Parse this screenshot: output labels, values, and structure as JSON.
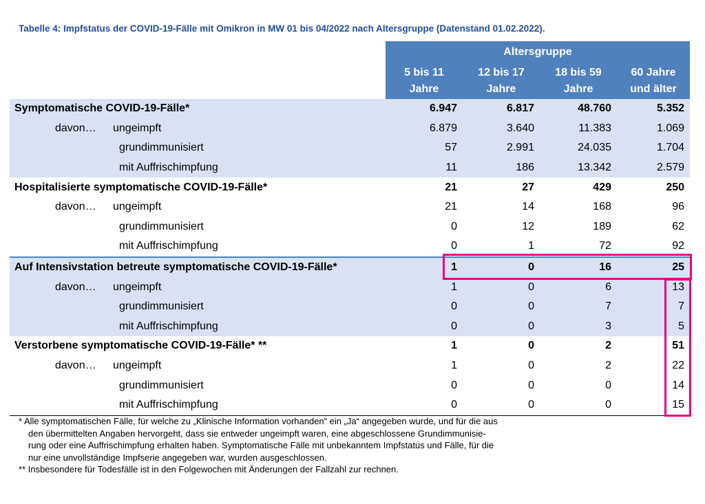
{
  "title": "Tabelle 4: Impfstatus der COVID-19-Fälle mit Omikron in MW 01 bis 04/2022 nach Altersgruppe (Datenstand 01.02.2022).",
  "group_header": "Altersgruppe",
  "columns": [
    {
      "line1": "5 bis 11",
      "line2": "Jahre"
    },
    {
      "line1": "12 bis 17",
      "line2": "Jahre"
    },
    {
      "line1": "18 bis 59",
      "line2": "Jahre"
    },
    {
      "line1": "60 Jahre",
      "line2": "und älter"
    }
  ],
  "davon_label": "davon…",
  "sections": [
    {
      "label": "Symptomatische COVID-19-Fälle*",
      "totals": [
        "6.947",
        "6.817",
        "48.760",
        "5.352"
      ],
      "rows": [
        {
          "label": "ungeimpft",
          "values": [
            "6.879",
            "3.640",
            "11.383",
            "1.069"
          ]
        },
        {
          "label": "grundimmunisiert",
          "values": [
            "57",
            "2.991",
            "24.035",
            "1.704"
          ]
        },
        {
          "label": "mit Auffrischimpfung",
          "values": [
            "11",
            "186",
            "13.342",
            "2.579"
          ]
        }
      ]
    },
    {
      "label": "Hospitalisierte symptomatische COVID-19-Fälle*",
      "totals": [
        "21",
        "27",
        "429",
        "250"
      ],
      "rows": [
        {
          "label": "ungeimpft",
          "values": [
            "21",
            "14",
            "168",
            "96"
          ]
        },
        {
          "label": "grundimmunisiert",
          "values": [
            "0",
            "12",
            "189",
            "62"
          ]
        },
        {
          "label": "mit Auffrischimpfung",
          "values": [
            "0",
            "1",
            "72",
            "92"
          ]
        }
      ]
    },
    {
      "label": "Auf Intensivstation betreute symptomatische COVID-19-Fälle*",
      "totals": [
        "1",
        "0",
        "16",
        "25"
      ],
      "rows": [
        {
          "label": "ungeimpft",
          "values": [
            "1",
            "0",
            "6",
            "13"
          ]
        },
        {
          "label": "grundimmunisiert",
          "values": [
            "0",
            "0",
            "7",
            "7"
          ]
        },
        {
          "label": "mit Auffrischimpfung",
          "values": [
            "0",
            "0",
            "3",
            "5"
          ]
        }
      ]
    },
    {
      "label": "Verstorbene symptomatische COVID-19-Fälle* **",
      "totals": [
        "1",
        "0",
        "2",
        "51"
      ],
      "rows": [
        {
          "label": "ungeimpft",
          "values": [
            "1",
            "0",
            "2",
            "22"
          ]
        },
        {
          "label": "grundimmunisiert",
          "values": [
            "0",
            "0",
            "0",
            "14"
          ]
        },
        {
          "label": "mit Auffrischimpfung",
          "values": [
            "0",
            "0",
            "0",
            "15"
          ]
        }
      ]
    }
  ],
  "footnotes": {
    "note1_lines": [
      "* Alle symptomatischen Fälle, für welche zu „Klinische Information vorhanden“ ein „Ja“ angegeben wurde, und für die aus",
      "den übermittelten Angaben hervorgeht, dass sie entweder ungeimpft waren, eine abgeschlossene Grundimmunisie-",
      "rung oder eine Auffrischimpfung erhalten haben. Symptomatische Fälle mit unbekanntem Impfstatus und Fälle, für die",
      "nur eine unvollständige Impfserie angegeben war, wurden ausgeschlossen."
    ],
    "note2": "** Insbesondere für Todesfälle ist in den Folgewochen mit Änderungen der Fallzahl zur rechnen."
  },
  "colors": {
    "title": "#1f4e9a",
    "header_fill": "#4f81bd",
    "row_fill": "#d9e1f2",
    "highlight": "#e6007e"
  }
}
